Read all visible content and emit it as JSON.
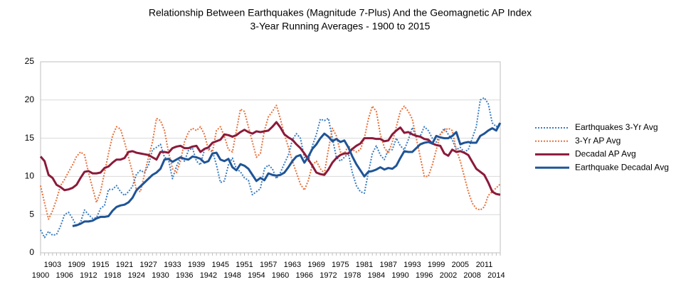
{
  "chart_data": {
    "type": "line",
    "title": "Relationship Between Earthquakes (Magnitude 7-Plus) And the Geomagnetic AP Index",
    "subtitle": "3-Year Running Averages - 1900 to 2015",
    "categories": [
      "1900",
      null,
      null,
      "1903",
      null,
      null,
      "1906",
      null,
      null,
      "1909",
      null,
      null,
      "1912",
      null,
      null,
      "1915",
      null,
      null,
      "1918",
      null,
      null,
      "1921",
      null,
      null,
      "1924",
      null,
      null,
      "1927",
      null,
      null,
      "1930",
      null,
      null,
      "1933",
      null,
      null,
      "1936",
      null,
      null,
      "1939",
      null,
      null,
      "1942",
      null,
      null,
      "1945",
      null,
      null,
      "1948",
      null,
      null,
      "1951",
      null,
      null,
      "1954",
      null,
      null,
      "1957",
      null,
      null,
      "1960",
      null,
      null,
      "1963",
      null,
      null,
      "1966",
      null,
      null,
      "1969",
      null,
      null,
      "1972",
      null,
      null,
      "1975",
      null,
      null,
      "1978",
      null,
      null,
      "1981",
      null,
      null,
      "1984",
      null,
      null,
      "1987",
      null,
      null,
      "1990",
      null,
      null,
      "1993",
      null,
      null,
      "1996",
      null,
      null,
      "1999",
      null,
      null,
      "2002",
      null,
      null,
      "2005",
      null,
      null,
      "2008",
      null,
      null,
      "2011",
      null,
      null,
      "2014",
      null
    ],
    "ylim": [
      0,
      25
    ],
    "yticks": [
      0,
      5,
      10,
      15,
      20,
      25
    ],
    "grid": true,
    "legend": "right",
    "series": [
      {
        "name": "Earthquakes 3-Yr Avg",
        "color": "#3a7cc0",
        "style": "dotted",
        "values": [
          3.0,
          2.0,
          2.8,
          2.3,
          2.4,
          3.5,
          5.0,
          5.3,
          4.5,
          3.5,
          4.0,
          5.6,
          5.0,
          4.5,
          4.6,
          5.8,
          6.2,
          8.3,
          8.3,
          8.8,
          8.0,
          7.5,
          8.0,
          8.7,
          10.3,
          10.8,
          10.5,
          11.5,
          13.5,
          13.8,
          14.2,
          12.5,
          12.2,
          9.7,
          11.3,
          12.5,
          12.0,
          13.4,
          13.7,
          12.0,
          11.5,
          13.5,
          13.7,
          13.3,
          11.5,
          9.2,
          9.4,
          11.5,
          12.4,
          11.0,
          10.6,
          9.8,
          9.5,
          7.6,
          8.0,
          8.4,
          11.0,
          11.5,
          11.0,
          9.7,
          10.5,
          11.7,
          12.8,
          14.8,
          15.6,
          15.0,
          12.5,
          12.0,
          14.0,
          15.5,
          17.5,
          17.3,
          17.6,
          15.0,
          12.5,
          12.0,
          12.5,
          13.0,
          10.5,
          8.8,
          8.0,
          7.8,
          10.5,
          13.0,
          14.0,
          12.8,
          12.2,
          13.5,
          13.5,
          15.0,
          14.0,
          13.5,
          14.8,
          16.4,
          15.2,
          15.3,
          16.5,
          16.0,
          15.0,
          14.5,
          15.5,
          16.3,
          15.5,
          14.8,
          13.5,
          13.8,
          13.2,
          13.5,
          15.0,
          16.5,
          20.0,
          20.3,
          19.5,
          17.0,
          16.5,
          17.0
        ]
      },
      {
        "name": "3-Yr AP Avg",
        "color": "#e8703a",
        "style": "dotted",
        "values": [
          8.8,
          6.5,
          4.4,
          5.5,
          7.0,
          8.8,
          9.6,
          10.6,
          11.5,
          12.6,
          13.2,
          12.8,
          10.5,
          8.5,
          6.6,
          8.0,
          10.5,
          13.0,
          15.3,
          16.5,
          16.2,
          14.5,
          12.5,
          10.5,
          8.2,
          8.0,
          10.3,
          12.5,
          14.5,
          17.6,
          17.3,
          16.0,
          13.2,
          11.0,
          10.5,
          12.0,
          14.5,
          15.8,
          16.3,
          16.0,
          16.5,
          15.5,
          13.5,
          13.2,
          16.0,
          16.5,
          15.2,
          13.5,
          13.2,
          16.0,
          18.8,
          18.5,
          16.5,
          14.5,
          12.5,
          13.0,
          16.0,
          17.8,
          18.5,
          19.3,
          17.5,
          15.5,
          13.8,
          12.0,
          10.5,
          9.0,
          8.2,
          9.5,
          11.5,
          12.0,
          11.0,
          10.4,
          13.5,
          16.3,
          15.3,
          13.2,
          13.0,
          14.0,
          13.5,
          13.2,
          13.5,
          15.0,
          17.5,
          19.2,
          18.5,
          15.5,
          13.8,
          13.0,
          14.5,
          16.5,
          18.5,
          19.2,
          18.5,
          17.5,
          15.0,
          12.5,
          10.0,
          10.0,
          11.5,
          13.5,
          15.5,
          16.0,
          16.3,
          16.0,
          13.5,
          12.0,
          10.0,
          8.0,
          6.5,
          5.8,
          5.6,
          6.0,
          7.5,
          8.0,
          8.5,
          9.0
        ]
      },
      {
        "name": "Decadal AP Avg",
        "color": "#8b1a3a",
        "style": "solid",
        "values": [
          12.6,
          12.0,
          10.2,
          9.8,
          8.9,
          8.6,
          8.2,
          8.3,
          8.5,
          8.9,
          9.8,
          10.6,
          10.7,
          10.4,
          10.4,
          10.5,
          11.1,
          11.3,
          11.8,
          12.2,
          12.2,
          12.4,
          13.2,
          13.3,
          13.1,
          13.0,
          12.9,
          12.8,
          12.5,
          12.2,
          13.2,
          13.2,
          13.1,
          13.7,
          13.9,
          14.0,
          13.7,
          13.7,
          13.9,
          14.0,
          13.2,
          13.6,
          13.8,
          14.4,
          14.6,
          14.8,
          15.5,
          15.4,
          15.2,
          15.4,
          15.8,
          16.1,
          15.8,
          15.6,
          15.9,
          15.8,
          15.9,
          16.0,
          16.5,
          17.1,
          16.4,
          15.5,
          15.1,
          14.8,
          14.2,
          13.7,
          13.0,
          12.2,
          11.4,
          10.5,
          10.3,
          10.2,
          10.9,
          11.8,
          12.4,
          12.8,
          13.0,
          13.0,
          13.6,
          14.0,
          14.3,
          15.0,
          15.0,
          15.0,
          14.9,
          14.9,
          14.6,
          14.7,
          15.5,
          16.0,
          16.4,
          15.7,
          15.8,
          15.5,
          15.3,
          15.2,
          14.9,
          14.8,
          14.3,
          14.1,
          14.0,
          13.0,
          12.7,
          13.5,
          13.2,
          13.3,
          13.1,
          12.8,
          11.9,
          11.0,
          10.6,
          10.2,
          9.2,
          8.0,
          7.7,
          7.6
        ]
      },
      {
        "name": "Earthquake Decadal Avg",
        "color": "#1f5496",
        "style": "solid",
        "values": [
          null,
          null,
          null,
          null,
          null,
          null,
          null,
          null,
          3.5,
          3.6,
          3.8,
          4.1,
          4.1,
          4.2,
          4.5,
          4.7,
          4.7,
          4.8,
          5.5,
          6.0,
          6.2,
          6.3,
          6.6,
          7.2,
          8.2,
          8.7,
          9.2,
          9.7,
          10.2,
          10.5,
          11.0,
          12.2,
          12.3,
          11.9,
          12.2,
          12.5,
          12.3,
          12.2,
          12.6,
          12.5,
          12.3,
          11.8,
          12.0,
          13.0,
          13.1,
          12.2,
          12.0,
          12.3,
          11.2,
          10.8,
          11.6,
          11.4,
          11.0,
          10.2,
          9.4,
          9.8,
          9.5,
          10.4,
          10.2,
          10.1,
          10.2,
          10.5,
          11.2,
          12.0,
          12.6,
          12.8,
          11.8,
          12.6,
          13.6,
          14.2,
          15.0,
          15.6,
          15.2,
          14.6,
          14.9,
          14.5,
          14.7,
          13.8,
          12.6,
          11.6,
          10.8,
          10.0,
          10.6,
          10.7,
          10.9,
          11.2,
          10.9,
          11.1,
          11.0,
          11.4,
          12.4,
          13.3,
          13.2,
          13.2,
          13.7,
          14.2,
          14.4,
          14.5,
          14.3,
          15.3,
          15.1,
          15.0,
          15.0,
          15.3,
          15.8,
          14.2,
          14.4,
          14.5,
          14.4,
          14.4,
          15.3,
          15.6,
          16.0,
          16.3,
          16.0,
          17.0
        ]
      }
    ]
  }
}
